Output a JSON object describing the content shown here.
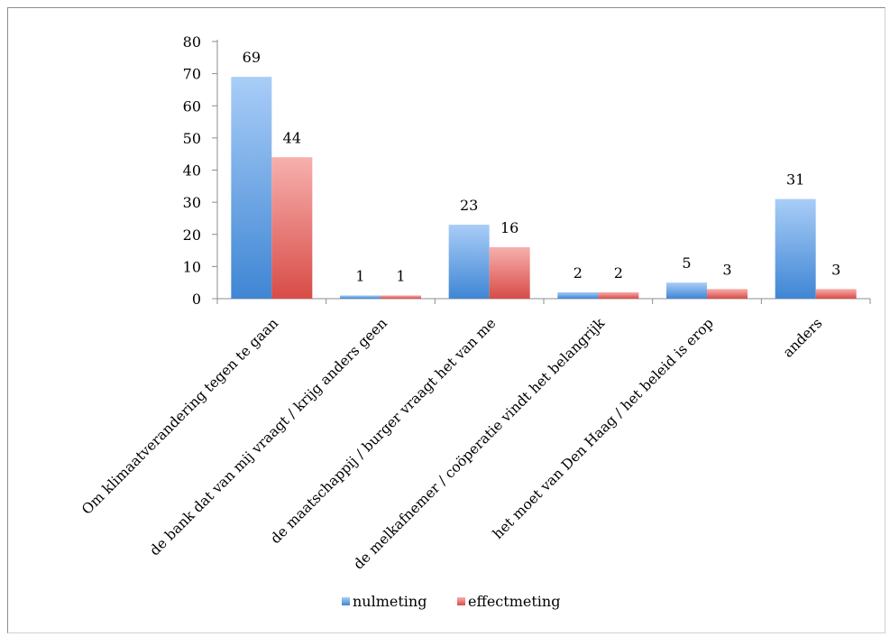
{
  "chart_data": {
    "type": "bar",
    "title": "",
    "xlabel": "",
    "ylabel": "",
    "ylim": [
      0,
      80
    ],
    "yticks": [
      0,
      10,
      20,
      30,
      40,
      50,
      60,
      70,
      80
    ],
    "grid": false,
    "legend_position": "bottom",
    "categories": [
      "Om klimaatverandering tegen te gaan",
      "de bank dat van mij vraagt / krijg anders geen",
      "de maatschappij / burger vraagt het van me",
      "de melkafnemer / coöperatie vindt het belangrijk",
      "het moet van Den Haag / het beleid is erop",
      "anders"
    ],
    "series": [
      {
        "name": "nulmeting",
        "values": [
          69,
          1,
          23,
          2,
          5,
          31
        ],
        "color_top": "#a9cdf7",
        "color_bottom": "#3f86d4"
      },
      {
        "name": "effectmeting",
        "values": [
          44,
          1,
          16,
          2,
          3,
          3
        ],
        "color_top": "#f7b0ae",
        "color_bottom": "#d84c47"
      }
    ]
  }
}
